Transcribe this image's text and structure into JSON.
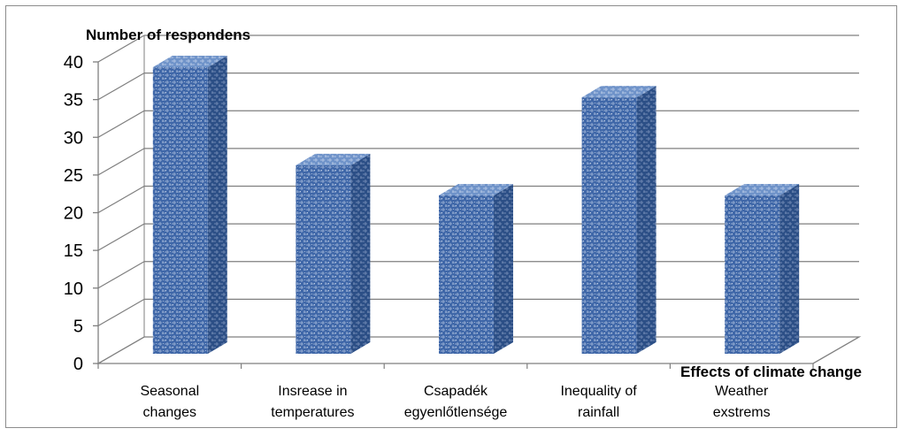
{
  "chart_data": {
    "type": "bar",
    "style": "3d-column",
    "categories": [
      [
        "Seasonal",
        "changes"
      ],
      [
        "Insrease in",
        "temperatures"
      ],
      [
        "Csapadék",
        "egyenlőtlensége"
      ],
      [
        "Inequality of",
        "rainfall"
      ],
      [
        "Weather",
        "exstrems"
      ]
    ],
    "values": [
      38,
      25,
      21,
      34,
      21
    ],
    "ylabel": "Number of respondens",
    "xlabel": "Effects of climate change",
    "ylim": [
      0,
      40
    ],
    "yticks": [
      "0",
      "5",
      "10",
      "15",
      "20",
      "25",
      "30",
      "35",
      "40"
    ],
    "grid": true,
    "colors": {
      "bar_front": "#3f67a8",
      "bar_side": "#2c4f86",
      "bar_top": "#6f93c9",
      "texture": "#d7e2f3",
      "gridline": "#7f7f7f",
      "axis": "#7f7f7f"
    }
  }
}
